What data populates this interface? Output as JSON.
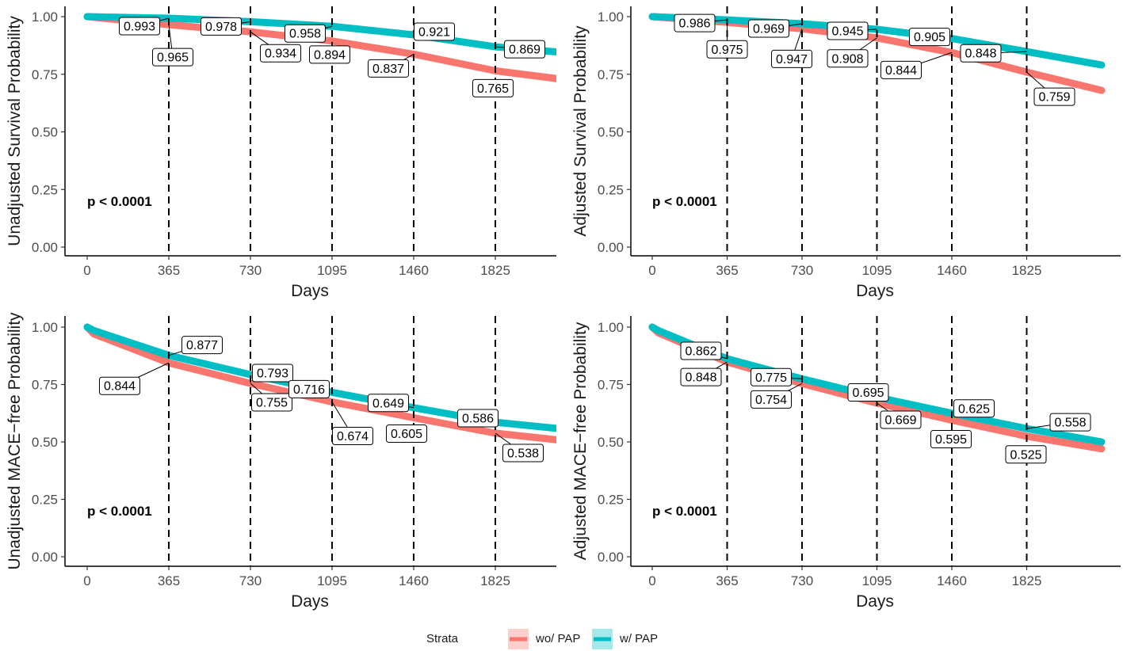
{
  "colors": {
    "wo_pap": "#F8766D",
    "w_pap": "#00BFC4",
    "axis": "#000000",
    "tick_text": "#4D4D4D"
  },
  "legend": {
    "title": "Strata",
    "items": [
      {
        "label": "wo/ PAP",
        "color": "#F8766D"
      },
      {
        "label": "w/ PAP",
        "color": "#00BFC4"
      }
    ]
  },
  "chart_data": [
    {
      "type": "line",
      "ylabel": "Unadjusted Survival Probability",
      "xlabel": "Days",
      "xlim": [
        0,
        2190
      ],
      "ylim": [
        0,
        1
      ],
      "x_ticks": [
        "0",
        "365",
        "730",
        "1095",
        "1460",
        "1825"
      ],
      "y_ticks": [
        "0.00",
        "0.25",
        "0.50",
        "0.75",
        "1.00"
      ],
      "reference_lines_x": [
        365,
        730,
        1095,
        1460,
        1825
      ],
      "pvalue": "p < 0.0001",
      "series": [
        {
          "name": "wo/ PAP",
          "x": [
            0,
            365,
            730,
            1095,
            1460,
            1825,
            2190
          ],
          "values": [
            1.0,
            0.965,
            0.934,
            0.894,
            0.837,
            0.765,
            0.72
          ]
        },
        {
          "name": "w/ PAP",
          "x": [
            0,
            365,
            730,
            1095,
            1460,
            1825,
            2190
          ],
          "values": [
            1.0,
            0.993,
            0.978,
            0.958,
            0.921,
            0.869,
            0.84
          ]
        }
      ],
      "annotations": [
        {
          "text": "0.993",
          "series": "w/ PAP",
          "x": 365,
          "y": 0.993
        },
        {
          "text": "0.965",
          "series": "wo/ PAP",
          "x": 365,
          "y": 0.965
        },
        {
          "text": "0.978",
          "series": "w/ PAP",
          "x": 730,
          "y": 0.978
        },
        {
          "text": "0.934",
          "series": "wo/ PAP",
          "x": 730,
          "y": 0.934
        },
        {
          "text": "0.958",
          "series": "w/ PAP",
          "x": 1095,
          "y": 0.958
        },
        {
          "text": "0.894",
          "series": "wo/ PAP",
          "x": 1095,
          "y": 0.894
        },
        {
          "text": "0.921",
          "series": "w/ PAP",
          "x": 1460,
          "y": 0.921
        },
        {
          "text": "0.837",
          "series": "wo/ PAP",
          "x": 1460,
          "y": 0.837
        },
        {
          "text": "0.869",
          "series": "w/ PAP",
          "x": 1825,
          "y": 0.869
        },
        {
          "text": "0.765",
          "series": "wo/ PAP",
          "x": 1825,
          "y": 0.765
        }
      ]
    },
    {
      "type": "line",
      "ylabel": "Adjusted Survival Probability",
      "xlabel": "Days",
      "xlim": [
        0,
        2190
      ],
      "ylim": [
        0,
        1
      ],
      "x_ticks": [
        "0",
        "365",
        "730",
        "1095",
        "1460",
        "1825"
      ],
      "y_ticks": [
        "0.00",
        "0.25",
        "0.50",
        "0.75",
        "1.00"
      ],
      "reference_lines_x": [
        365,
        730,
        1095,
        1460,
        1825
      ],
      "pvalue": "p < 0.0001",
      "series": [
        {
          "name": "wo/ PAP",
          "x": [
            0,
            365,
            730,
            1095,
            1460,
            1825,
            2190
          ],
          "values": [
            1.0,
            0.975,
            0.947,
            0.908,
            0.844,
            0.759,
            0.68
          ]
        },
        {
          "name": "w/ PAP",
          "x": [
            0,
            365,
            730,
            1095,
            1460,
            1825,
            2190
          ],
          "values": [
            1.0,
            0.986,
            0.969,
            0.945,
            0.905,
            0.848,
            0.79
          ]
        }
      ],
      "annotations": [
        {
          "text": "0.986",
          "series": "w/ PAP",
          "x": 365,
          "y": 0.986
        },
        {
          "text": "0.975",
          "series": "wo/ PAP",
          "x": 365,
          "y": 0.975
        },
        {
          "text": "0.969",
          "series": "w/ PAP",
          "x": 730,
          "y": 0.969
        },
        {
          "text": "0.947",
          "series": "wo/ PAP",
          "x": 730,
          "y": 0.947
        },
        {
          "text": "0.945",
          "series": "w/ PAP",
          "x": 1095,
          "y": 0.945
        },
        {
          "text": "0.908",
          "series": "wo/ PAP",
          "x": 1095,
          "y": 0.908
        },
        {
          "text": "0.905",
          "series": "w/ PAP",
          "x": 1460,
          "y": 0.905
        },
        {
          "text": "0.844",
          "series": "wo/ PAP",
          "x": 1460,
          "y": 0.844
        },
        {
          "text": "0.848",
          "series": "w/ PAP",
          "x": 1825,
          "y": 0.848
        },
        {
          "text": "0.759",
          "series": "wo/ PAP",
          "x": 1825,
          "y": 0.759
        }
      ]
    },
    {
      "type": "line",
      "ylabel": "Unadjusted MACE−free Probability",
      "xlabel": "Days",
      "xlim": [
        0,
        2190
      ],
      "ylim": [
        0,
        1
      ],
      "x_ticks": [
        "0",
        "365",
        "730",
        "1095",
        "1460",
        "1825"
      ],
      "y_ticks": [
        "0.00",
        "0.25",
        "0.50",
        "0.75",
        "1.00"
      ],
      "reference_lines_x": [
        365,
        730,
        1095,
        1460,
        1825
      ],
      "pvalue": "p < 0.0001",
      "series": [
        {
          "name": "wo/ PAP",
          "x": [
            0,
            30,
            365,
            730,
            1095,
            1460,
            1825,
            2190
          ],
          "values": [
            1.0,
            0.97,
            0.844,
            0.755,
            0.674,
            0.605,
            0.538,
            0.5
          ]
        },
        {
          "name": "w/ PAP",
          "x": [
            0,
            30,
            365,
            730,
            1095,
            1460,
            1825,
            2190
          ],
          "values": [
            1.0,
            0.985,
            0.877,
            0.793,
            0.716,
            0.649,
            0.586,
            0.55
          ]
        }
      ],
      "annotations": [
        {
          "text": "0.877",
          "series": "w/ PAP",
          "x": 365,
          "y": 0.877
        },
        {
          "text": "0.844",
          "series": "wo/ PAP",
          "x": 365,
          "y": 0.844
        },
        {
          "text": "0.793",
          "series": "w/ PAP",
          "x": 730,
          "y": 0.793
        },
        {
          "text": "0.755",
          "series": "wo/ PAP",
          "x": 730,
          "y": 0.755
        },
        {
          "text": "0.716",
          "series": "w/ PAP",
          "x": 1095,
          "y": 0.716
        },
        {
          "text": "0.674",
          "series": "wo/ PAP",
          "x": 1095,
          "y": 0.674
        },
        {
          "text": "0.649",
          "series": "w/ PAP",
          "x": 1460,
          "y": 0.649
        },
        {
          "text": "0.605",
          "series": "wo/ PAP",
          "x": 1460,
          "y": 0.605
        },
        {
          "text": "0.586",
          "series": "w/ PAP",
          "x": 1825,
          "y": 0.586
        },
        {
          "text": "0.538",
          "series": "wo/ PAP",
          "x": 1825,
          "y": 0.538
        }
      ]
    },
    {
      "type": "line",
      "ylabel": "Adjusted MACE−free Probability",
      "xlabel": "Days",
      "xlim": [
        0,
        2190
      ],
      "ylim": [
        0,
        1
      ],
      "x_ticks": [
        "0",
        "365",
        "730",
        "1095",
        "1460",
        "1825"
      ],
      "y_ticks": [
        "0.00",
        "0.25",
        "0.50",
        "0.75",
        "1.00"
      ],
      "reference_lines_x": [
        365,
        730,
        1095,
        1460,
        1825
      ],
      "pvalue": "p < 0.0001",
      "series": [
        {
          "name": "wo/ PAP",
          "x": [
            0,
            30,
            365,
            730,
            1095,
            1460,
            1825,
            2190
          ],
          "values": [
            1.0,
            0.975,
            0.848,
            0.754,
            0.669,
            0.595,
            0.525,
            0.47
          ]
        },
        {
          "name": "w/ PAP",
          "x": [
            0,
            30,
            365,
            730,
            1095,
            1460,
            1825,
            2190
          ],
          "values": [
            1.0,
            0.985,
            0.862,
            0.775,
            0.695,
            0.625,
            0.558,
            0.5
          ]
        }
      ],
      "annotations": [
        {
          "text": "0.862",
          "series": "w/ PAP",
          "x": 365,
          "y": 0.862
        },
        {
          "text": "0.848",
          "series": "wo/ PAP",
          "x": 365,
          "y": 0.848
        },
        {
          "text": "0.775",
          "series": "w/ PAP",
          "x": 730,
          "y": 0.775
        },
        {
          "text": "0.754",
          "series": "wo/ PAP",
          "x": 730,
          "y": 0.754
        },
        {
          "text": "0.695",
          "series": "w/ PAP",
          "x": 1095,
          "y": 0.695
        },
        {
          "text": "0.669",
          "series": "wo/ PAP",
          "x": 1095,
          "y": 0.669
        },
        {
          "text": "0.625",
          "series": "w/ PAP",
          "x": 1460,
          "y": 0.625
        },
        {
          "text": "0.595",
          "series": "wo/ PAP",
          "x": 1460,
          "y": 0.595
        },
        {
          "text": "0.558",
          "series": "w/ PAP",
          "x": 1825,
          "y": 0.558
        },
        {
          "text": "0.525",
          "series": "wo/ PAP",
          "x": 1825,
          "y": 0.525
        }
      ]
    }
  ]
}
